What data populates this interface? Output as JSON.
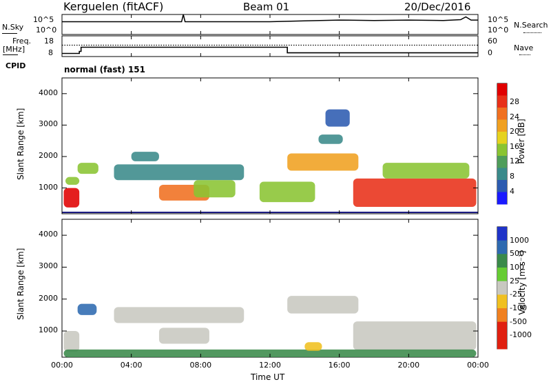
{
  "header": {
    "station": "Kerguelen (fitACF)",
    "beam": "Beam 01",
    "date": "20/Dec/2016"
  },
  "noise_panel": {
    "left_label": "N.Sky",
    "right_label": "N.Search",
    "left_ticks": [
      "10^5",
      "10^0"
    ],
    "right_ticks": [
      "10^5",
      "10^0"
    ]
  },
  "freq_panel": {
    "left_label_1": "Freq.",
    "left_label_2": "[MHz]",
    "right_label": "Nave",
    "left_ticks": [
      "18",
      "8"
    ],
    "right_ticks": [
      "60",
      "0"
    ],
    "cpid_label": "CPID",
    "cpid_text": "normal (fast) 151"
  },
  "power_panel": {
    "ylabel": "Slant Range [km]",
    "yticks": [
      "4000",
      "3000",
      "2000",
      "1000"
    ],
    "cbar_label": "Power [dB]",
    "cbar_ticks": [
      "28",
      "24",
      "20",
      "16",
      "12",
      "8",
      "4"
    ]
  },
  "velocity_panel": {
    "ylabel": "Slant Range [km]",
    "yticks": [
      "4000",
      "3000",
      "2000",
      "1000"
    ],
    "cbar_label": "Velocity [m s⁻¹]",
    "cbar_ticks": [
      "1000",
      "500",
      "100",
      "25",
      "-25",
      "-100",
      "-500",
      "-1000"
    ]
  },
  "xaxis": {
    "label": "Time UT",
    "ticks": [
      "00:00",
      "04:00",
      "08:00",
      "12:00",
      "16:00",
      "20:00",
      "00:00"
    ]
  },
  "chart_data": [
    {
      "type": "line",
      "title": "N.Sky / N.Search",
      "xlim": [
        0,
        24
      ],
      "ylim_log10": [
        0,
        5
      ],
      "series": [
        {
          "name": "N.Sky",
          "x": [
            0,
            0.1,
            6.9,
            7.0,
            7.1,
            12,
            14,
            16,
            18,
            20,
            22,
            23,
            23.3,
            23.6,
            24
          ],
          "y": [
            3.2,
            3.2,
            3.2,
            5.0,
            3.2,
            3.2,
            3.4,
            3.6,
            3.5,
            3.6,
            3.5,
            3.7,
            4.4,
            3.6,
            3.6
          ]
        }
      ]
    },
    {
      "type": "line",
      "title": "Freq / Nave",
      "xlim": [
        0,
        24
      ],
      "ylim": [
        8,
        18
      ],
      "series": [
        {
          "name": "Freq",
          "x": [
            0,
            1.0,
            1.0,
            1.1,
            1.1,
            13.0,
            13.0,
            24
          ],
          "y": [
            9.5,
            9.5,
            10.5,
            10.5,
            12.5,
            12.5,
            9.8,
            9.8
          ]
        },
        {
          "name": "Nave",
          "x": [
            0,
            24
          ],
          "y": [
            13.5,
            13.5
          ]
        }
      ]
    },
    {
      "type": "heatmap",
      "title": "Power [dB]",
      "xlim": [
        0,
        24
      ],
      "ylim": [
        180,
        4500
      ],
      "zlim": [
        0,
        30
      ],
      "patches": [
        {
          "x0": 0.1,
          "x1": 1.0,
          "y0": 380,
          "y1": 1000,
          "value": 27
        },
        {
          "x0": 0.2,
          "x1": 1.0,
          "y0": 1100,
          "y1": 1350,
          "value": 12
        },
        {
          "x0": 0.9,
          "x1": 2.1,
          "y0": 1450,
          "y1": 1800,
          "value": 14
        },
        {
          "x0": 3.0,
          "x1": 10.5,
          "y0": 1250,
          "y1": 1750,
          "value": 8
        },
        {
          "x0": 4.0,
          "x1": 5.6,
          "y0": 1850,
          "y1": 2150,
          "value": 6
        },
        {
          "x0": 5.6,
          "x1": 8.5,
          "y0": 600,
          "y1": 1100,
          "value": 22
        },
        {
          "x0": 7.6,
          "x1": 10.0,
          "y0": 700,
          "y1": 1250,
          "value": 14
        },
        {
          "x0": 11.4,
          "x1": 14.6,
          "y0": 550,
          "y1": 1200,
          "value": 12
        },
        {
          "x0": 13.0,
          "x1": 17.1,
          "y0": 1550,
          "y1": 2100,
          "value": 20
        },
        {
          "x0": 14.8,
          "x1": 16.2,
          "y0": 2400,
          "y1": 2700,
          "value": 8
        },
        {
          "x0": 15.2,
          "x1": 16.6,
          "y0": 2950,
          "y1": 3500,
          "value": 4
        },
        {
          "x0": 16.8,
          "x1": 23.9,
          "y0": 400,
          "y1": 1300,
          "value": 26
        },
        {
          "x0": 18.5,
          "x1": 23.5,
          "y0": 1300,
          "y1": 1800,
          "value": 12
        }
      ]
    },
    {
      "type": "heatmap",
      "title": "Velocity [m s⁻¹]",
      "xlim": [
        0,
        24
      ],
      "ylim": [
        180,
        4500
      ],
      "zlim": [
        -1000,
        1000
      ],
      "patches": [
        {
          "x0": 0.1,
          "x1": 1.0,
          "y0": 350,
          "y1": 1000,
          "value": 0
        },
        {
          "x0": 0.9,
          "x1": 2.0,
          "y0": 1500,
          "y1": 1850,
          "value": 500
        },
        {
          "x0": 3.0,
          "x1": 10.5,
          "y0": 1250,
          "y1": 1750,
          "value": 0
        },
        {
          "x0": 5.6,
          "x1": 8.5,
          "y0": 600,
          "y1": 1100,
          "value": 0
        },
        {
          "x0": 13.0,
          "x1": 17.1,
          "y0": 1550,
          "y1": 2100,
          "value": 0
        },
        {
          "x0": 16.8,
          "x1": 23.9,
          "y0": 400,
          "y1": 1300,
          "value": 0
        },
        {
          "x0": 0.1,
          "x1": 23.9,
          "y0": 180,
          "y1": 420,
          "value": 100
        },
        {
          "x0": 14.0,
          "x1": 15.0,
          "y0": 380,
          "y1": 650,
          "value": -100
        }
      ]
    }
  ]
}
